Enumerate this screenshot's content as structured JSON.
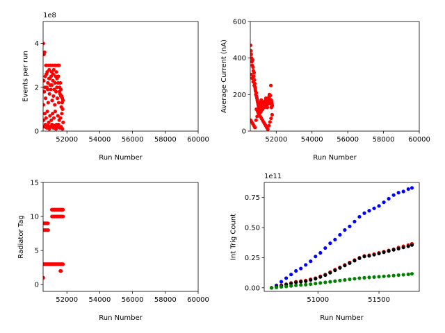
{
  "chart_data": [
    {
      "type": "scatter",
      "xlabel": "Run Number",
      "ylabel": "Events per run",
      "offset_label": "1e8",
      "xlim": [
        50550,
        60000
      ],
      "ylim": [
        0,
        5.0
      ],
      "xticks": [
        52000,
        54000,
        56000,
        58000,
        60000
      ],
      "yticks": [
        0,
        2,
        4
      ],
      "color": "#ff0000",
      "series": [
        {
          "x": [
            50560,
            50600,
            50640,
            50680,
            50720,
            50760,
            50800,
            50840,
            50880,
            50920,
            50960,
            51000,
            51040,
            51080,
            51120,
            51160,
            51200,
            51240,
            51280,
            51320,
            51360,
            51400,
            51440,
            51480,
            51520,
            51560,
            51600,
            51640,
            51680,
            51720,
            51760,
            50570,
            50620,
            50700,
            50780,
            50860,
            50940,
            51020,
            51100,
            51180,
            51260,
            51340,
            51420,
            51500,
            51580,
            51660,
            51740,
            50580,
            50650,
            50730,
            50810,
            50890,
            50970,
            51050,
            51130,
            51210,
            51290,
            51370,
            51450,
            51530,
            51610,
            51690,
            51770,
            50610,
            50690,
            50770,
            50850,
            50930,
            51010,
            51090,
            51170,
            51250,
            51330,
            51410,
            51490,
            51570,
            51650,
            51730,
            50590,
            50670,
            50750,
            50830,
            50910,
            50990,
            51070,
            51150,
            51230,
            51310,
            51390,
            51470,
            51550,
            51630,
            51710
          ],
          "y": [
            4.0,
            3.5,
            3.6,
            2.5,
            3.0,
            3.0,
            2.7,
            2.2,
            3.0,
            2.8,
            2.4,
            3.0,
            2.5,
            2.1,
            3.0,
            2.6,
            2.8,
            3.0,
            2.2,
            3.0,
            2.7,
            2.4,
            3.0,
            2.5,
            3.0,
            2.0,
            2.2,
            1.9,
            1.6,
            1.5,
            1.4,
            1.2,
            1.8,
            1.5,
            2.0,
            1.3,
            1.7,
            1.9,
            1.4,
            1.6,
            1.2,
            1.8,
            1.5,
            1.3,
            1.7,
            1.1,
            1.0,
            0.5,
            0.8,
            0.6,
            0.9,
            0.4,
            0.7,
            0.5,
            0.8,
            0.6,
            0.9,
            0.3,
            0.7,
            0.5,
            0.6,
            0.8,
            0.4,
            0.2,
            0.3,
            0.15,
            0.25,
            0.1,
            0.2,
            0.3,
            0.15,
            0.25,
            0.1,
            0.2,
            0.3,
            0.15,
            0.2,
            0.1,
            2.3,
            2.0,
            2.6,
            1.9,
            2.4,
            2.1,
            2.7,
            2.3,
            1.9,
            2.5,
            2.0,
            2.2,
            1.8,
            1.6,
            1.3
          ]
        }
      ]
    },
    {
      "type": "scatter",
      "xlabel": "Run Number",
      "ylabel": "Average Current (nA)",
      "xlim": [
        50550,
        60000
      ],
      "ylim": [
        0,
        600
      ],
      "xticks": [
        52000,
        54000,
        56000,
        58000,
        60000
      ],
      "yticks": [
        0,
        200,
        400,
        600
      ],
      "color": "#ff0000",
      "series": [
        {
          "x": [
            50560,
            50580,
            50600,
            50620,
            50640,
            50660,
            50680,
            50700,
            50720,
            50740,
            50760,
            50780,
            50800,
            50820,
            50840,
            50860,
            50880,
            50900,
            50920,
            50940,
            50960,
            50980,
            51000,
            51020,
            51040,
            51060,
            51080,
            51100,
            51120,
            51140,
            51160,
            51180,
            51200,
            51220,
            51240,
            51260,
            51280,
            51300,
            51320,
            51340,
            51360,
            51380,
            51400,
            51420,
            51440,
            51460,
            51480,
            51500,
            51520,
            51540,
            51560,
            51580,
            51600,
            51620,
            51640,
            51660,
            51680,
            51700,
            51720,
            51740,
            51760,
            51780,
            50570,
            50630,
            50690,
            50750,
            50810,
            50870,
            50930,
            50990,
            51050,
            51110,
            51170,
            51230,
            51290,
            51350,
            51410,
            51470,
            51530,
            51590,
            51650,
            51710,
            51770,
            50590,
            50650,
            50710,
            50770,
            50830,
            50890,
            50950,
            51010,
            51070,
            51130,
            51190,
            51250,
            51310,
            51370,
            51430,
            51490,
            51550,
            51610,
            51670,
            51730
          ],
          "y": [
            470,
            440,
            420,
            400,
            380,
            360,
            390,
            350,
            330,
            300,
            320,
            280,
            260,
            240,
            220,
            200,
            210,
            190,
            180,
            170,
            160,
            150,
            140,
            130,
            120,
            110,
            130,
            140,
            150,
            160,
            170,
            150,
            140,
            130,
            120,
            140,
            150,
            160,
            140,
            130,
            150,
            160,
            170,
            180,
            160,
            150,
            140,
            130,
            150,
            160,
            170,
            180,
            190,
            200,
            170,
            160,
            150,
            250,
            170,
            160,
            150,
            140,
            60,
            50,
            40,
            30,
            20,
            60,
            80,
            100,
            90,
            80,
            70,
            60,
            50,
            40,
            30,
            20,
            10,
            30,
            50,
            70,
            90,
            310,
            290,
            270,
            250,
            230,
            120,
            110,
            100,
            95,
            105,
            115,
            125,
            135,
            145,
            155,
            165,
            175,
            185,
            195,
            130
          ]
        }
      ]
    },
    {
      "type": "scatter",
      "xlabel": "Run Number",
      "ylabel": "Radiator Tag",
      "xlim": [
        50550,
        60000
      ],
      "ylim": [
        -1,
        15
      ],
      "xticks": [
        52000,
        54000,
        56000,
        58000,
        60000
      ],
      "yticks": [
        0,
        5,
        10,
        15
      ],
      "color": "#ff0000",
      "series": [
        {
          "x": [
            50560,
            50620,
            50680,
            50740,
            50800,
            50860,
            50920,
            50980,
            51040,
            51100,
            51160,
            51220,
            51280,
            51340,
            51400,
            51460,
            51520,
            51580,
            51640,
            51700,
            51760,
            50600,
            50660,
            50720,
            50780,
            50840,
            50620,
            50680,
            50740,
            50800,
            50860,
            51080,
            51120,
            51160,
            51200,
            51240,
            51280,
            51320,
            51360,
            51400,
            51440,
            51480,
            51520,
            51560,
            51600,
            51640,
            51680,
            51720,
            51760,
            51090,
            51130,
            51170,
            51210,
            51250,
            51290,
            51330,
            51370,
            51410,
            51450,
            51490,
            51530,
            51570,
            51610,
            51650,
            51690,
            51730,
            51770,
            51600,
            51620,
            51640
          ],
          "y": [
            1,
            3,
            3,
            3,
            3,
            3,
            3,
            3,
            3,
            3,
            3,
            3,
            3,
            3,
            3,
            3,
            3,
            3,
            3,
            3,
            3,
            9,
            9,
            9,
            9,
            9,
            8,
            8,
            8,
            8,
            8,
            11,
            11,
            11,
            11,
            11,
            11,
            11,
            11,
            11,
            11,
            11,
            11,
            11,
            11,
            11,
            11,
            11,
            11,
            10,
            10,
            10,
            10,
            10,
            10,
            10,
            10,
            10,
            10,
            10,
            10,
            10,
            10,
            10,
            10,
            10,
            10,
            2,
            2,
            2
          ]
        }
      ]
    },
    {
      "type": "scatter",
      "xlabel": "Run Number",
      "ylabel": "Int Trig Count",
      "offset_label": "1e11",
      "xlim": [
        50560,
        51830
      ],
      "ylim": [
        -0.03,
        0.875
      ],
      "xticks": [
        51000,
        51500
      ],
      "yticks": [
        0.0,
        0.25,
        0.5,
        0.75
      ],
      "ytick_labels": [
        "0.00",
        "0.25",
        "0.50",
        "0.75"
      ],
      "series": [
        {
          "color": "#0000ff",
          "x": [
            50620,
            50660,
            50700,
            50740,
            50780,
            50820,
            50860,
            50900,
            50940,
            50980,
            51020,
            51060,
            51100,
            51140,
            51180,
            51220,
            51260,
            51300,
            51340,
            51380,
            51420,
            51460,
            51500,
            51540,
            51580,
            51620,
            51660,
            51700,
            51740,
            51770
          ],
          "y": [
            0.0,
            0.02,
            0.05,
            0.08,
            0.11,
            0.14,
            0.16,
            0.19,
            0.22,
            0.26,
            0.29,
            0.33,
            0.37,
            0.4,
            0.44,
            0.48,
            0.51,
            0.55,
            0.59,
            0.62,
            0.64,
            0.66,
            0.68,
            0.71,
            0.74,
            0.77,
            0.79,
            0.8,
            0.82,
            0.83
          ]
        },
        {
          "color": "#ff0000",
          "x": [
            50620,
            50660,
            50700,
            50740,
            50780,
            50820,
            50860,
            50900,
            50940,
            50980,
            51020,
            51060,
            51100,
            51140,
            51180,
            51220,
            51260,
            51300,
            51340,
            51380,
            51420,
            51460,
            51500,
            51540,
            51580,
            51620,
            51660,
            51700,
            51740,
            51770
          ],
          "y": [
            0.0,
            0.01,
            0.02,
            0.03,
            0.04,
            0.05,
            0.055,
            0.06,
            0.07,
            0.08,
            0.095,
            0.11,
            0.13,
            0.15,
            0.17,
            0.19,
            0.21,
            0.23,
            0.25,
            0.265,
            0.27,
            0.28,
            0.29,
            0.3,
            0.31,
            0.32,
            0.335,
            0.345,
            0.355,
            0.365
          ]
        },
        {
          "color": "#000000",
          "x": [
            50620,
            50660,
            50700,
            50740,
            50780,
            50820,
            50860,
            50900,
            50940,
            50980,
            51020,
            51060,
            51100,
            51140,
            51180,
            51220,
            51260,
            51300,
            51340,
            51380,
            51420,
            51460,
            51500,
            51540,
            51580,
            51620,
            51660,
            51700,
            51740,
            51770
          ],
          "y": [
            0.0,
            0.008,
            0.016,
            0.025,
            0.035,
            0.045,
            0.05,
            0.055,
            0.065,
            0.075,
            0.09,
            0.105,
            0.125,
            0.145,
            0.165,
            0.185,
            0.205,
            0.225,
            0.245,
            0.26,
            0.265,
            0.275,
            0.285,
            0.295,
            0.305,
            0.315,
            0.325,
            0.335,
            0.345,
            0.355
          ]
        },
        {
          "color": "#008000",
          "x": [
            50620,
            50660,
            50700,
            50740,
            50780,
            50820,
            50860,
            50900,
            50940,
            50980,
            51020,
            51060,
            51100,
            51140,
            51180,
            51220,
            51260,
            51300,
            51340,
            51380,
            51420,
            51460,
            51500,
            51540,
            51580,
            51620,
            51660,
            51700,
            51740,
            51770
          ],
          "y": [
            0.0,
            0.003,
            0.007,
            0.011,
            0.015,
            0.02,
            0.023,
            0.026,
            0.03,
            0.035,
            0.04,
            0.045,
            0.05,
            0.055,
            0.06,
            0.065,
            0.07,
            0.075,
            0.08,
            0.083,
            0.086,
            0.089,
            0.092,
            0.095,
            0.098,
            0.101,
            0.105,
            0.108,
            0.112,
            0.116
          ]
        }
      ]
    }
  ]
}
